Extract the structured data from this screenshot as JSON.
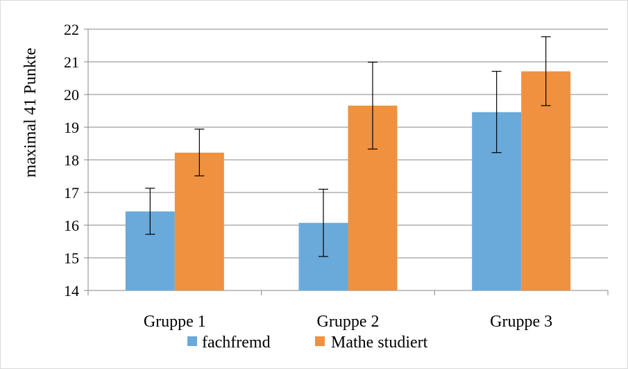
{
  "chart_data": {
    "type": "bar",
    "title": "",
    "xlabel": "",
    "ylabel": "maximal 41 Punkte",
    "ylim": [
      14,
      22
    ],
    "yticks": [
      14,
      15,
      16,
      17,
      18,
      19,
      20,
      21,
      22
    ],
    "grid": true,
    "legend_position": "bottom",
    "categories": [
      "Gruppe 1",
      "Gruppe 2",
      "Gruppe 3"
    ],
    "series": [
      {
        "name": "fachfremd",
        "color": "#6aaadb",
        "values": [
          16.42,
          16.07,
          19.46
        ],
        "error_low": [
          15.72,
          15.04,
          18.22
        ],
        "error_high": [
          17.13,
          17.1,
          20.71
        ]
      },
      {
        "name": "Mathe studiert",
        "color": "#f0913f",
        "values": [
          18.22,
          19.66,
          20.71
        ],
        "error_low": [
          17.51,
          18.33,
          19.66
        ],
        "error_high": [
          18.94,
          20.99,
          21.77
        ]
      }
    ]
  }
}
